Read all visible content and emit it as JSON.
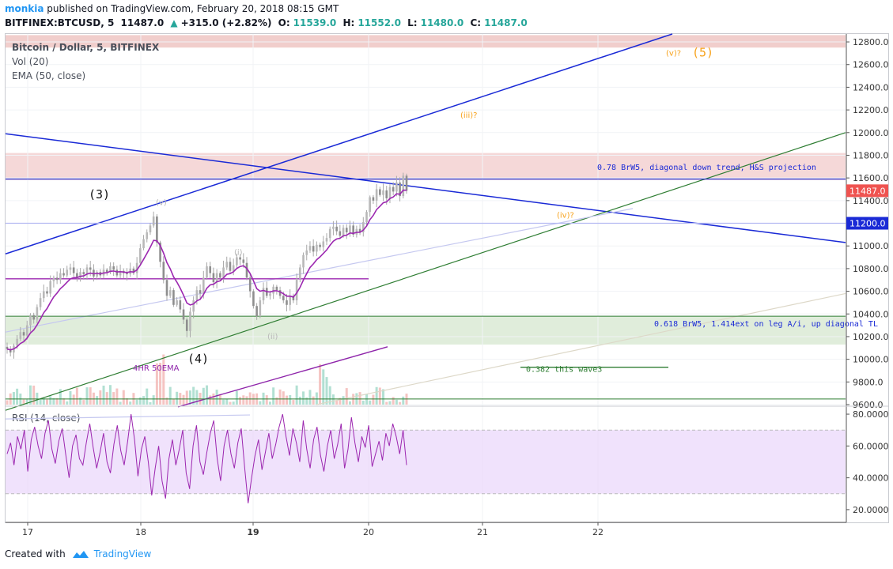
{
  "header": {
    "user": "monkia",
    "published": " published on TradingView.com, February 20, 2018 08:15 GMT",
    "symbol": "BITFINEX:BTCUSD, 5",
    "last": "11487.0",
    "change_icon": "up-triangle-icon",
    "change": "+315.0 (+2.82%)",
    "o_label": "O:",
    "o": "11539.0",
    "h_label": "H:",
    "h": "11552.0",
    "l_label": "L:",
    "l": "11480.0",
    "c_label": "C:",
    "c": "11487.0"
  },
  "legend": {
    "title": "Bitcoin / Dollar, 5, BITFINEX",
    "vol": "Vol (20)",
    "ema": "EMA (50, close)",
    "rsi": "RSI (14, close)"
  },
  "footer": {
    "created": "Created with",
    "brand": "TradingView"
  },
  "colors": {
    "accent": "#2196f3",
    "up": "#26a69a",
    "down": "#ef5350",
    "ema": "#9c27b0",
    "wave": "#f7a21b",
    "trend_blue": "#1a2ad6",
    "trend_green": "#2e7d32",
    "price_badge": "#ef5350",
    "rsi_band": "#e9d5fb"
  },
  "chart_data": {
    "type": "candlestick",
    "price_axis": {
      "ylim": [
        9600,
        12870
      ],
      "ticks": [
        "9600.0",
        "9800.0",
        "10000.0",
        "10200.0",
        "10400.0",
        "10600.0",
        "10800.0",
        "11000.0",
        "11200.0",
        "11400.0",
        "11600.0",
        "11800.0",
        "12000.0",
        "12200.0",
        "12400.0",
        "12600.0",
        "12800.0"
      ],
      "labels": {
        "last": "11487.0",
        "level": "11200.0"
      }
    },
    "time_axis": {
      "ticks": [
        "17",
        "18",
        "19",
        "20",
        "21",
        "22"
      ],
      "bold_tick": "19"
    },
    "rsi_axis": {
      "ylim": [
        12,
        84
      ],
      "ticks": [
        "20.0000",
        "40.0000",
        "60.0000",
        "80.0000"
      ],
      "band": [
        30,
        70
      ]
    },
    "zones": [
      {
        "name": "top-zone",
        "y1": 12750,
        "y2": 12860
      },
      {
        "name": "projection-zone",
        "y1": 11580,
        "y2": 11820
      },
      {
        "name": "support-zone",
        "y1": 10130,
        "y2": 10380
      }
    ],
    "annotations": {
      "projection": "0.78 BrW5, diagonal down trend, H&S projection",
      "support": "0.618 BrW5, 1.414ext on leg A/i, up diagonal TL",
      "wave382": "0.382 this wave3",
      "ema4hr": "4HR 50EMA",
      "w3": "(3)",
      "w4": "(4)",
      "w5": "(5)",
      "wv1": "(v)",
      "wv2": "(v)?",
      "wi": "(i)",
      "wii": "(ii)",
      "wiii": "(iii)?",
      "wiv": "(iv)?"
    },
    "close_series": [
      10090,
      10060,
      10120,
      10180,
      10240,
      10210,
      10300,
      10390,
      10350,
      10460,
      10540,
      10600,
      10580,
      10690,
      10720,
      10700,
      10760,
      10740,
      10790,
      10810,
      10760,
      10720,
      10770,
      10750,
      10810,
      10790,
      10730,
      10770,
      10740,
      10790,
      10770,
      10820,
      10790,
      10740,
      10780,
      10760,
      10750,
      10800,
      10760,
      10850,
      10980,
      11060,
      11120,
      11180,
      11260,
      11030,
      10860,
      10700,
      10560,
      10610,
      10480,
      10520,
      10440,
      10350,
      10250,
      10420,
      10520,
      10610,
      10580,
      10720,
      10820,
      10760,
      10680,
      10760,
      10720,
      10810,
      10860,
      10780,
      10830,
      10900,
      10880,
      10850,
      10720,
      10600,
      10470,
      10380,
      10520,
      10630,
      10560,
      10580,
      10640,
      10610,
      10560,
      10520,
      10480,
      10560,
      10520,
      10710,
      10810,
      10920,
      10960,
      11000,
      10950,
      11010,
      10990,
      11040,
      11070,
      11150,
      11170,
      11130,
      11090,
      11160,
      11120,
      11180,
      11100,
      11150,
      11120,
      11210,
      11300,
      11430,
      11400,
      11500,
      11450,
      11490,
      11420,
      11520,
      11480,
      11560,
      11440,
      11620,
      11487
    ],
    "rsi_series": [
      55,
      62,
      48,
      66,
      58,
      70,
      44,
      64,
      72,
      60,
      52,
      68,
      76,
      58,
      49,
      63,
      71,
      55,
      40,
      60,
      67,
      52,
      48,
      62,
      74,
      59,
      46,
      56,
      68,
      50,
      43,
      61,
      73,
      57,
      48,
      63,
      80,
      64,
      41,
      58,
      66,
      50,
      29,
      46,
      60,
      38,
      27,
      52,
      64,
      48,
      58,
      70,
      43,
      33,
      60,
      73,
      50,
      42,
      56,
      68,
      76,
      52,
      38,
      60,
      70,
      55,
      46,
      62,
      71,
      46,
      24,
      40,
      54,
      64,
      45,
      56,
      68,
      52,
      61,
      72,
      80,
      66,
      54,
      71,
      62,
      50,
      76,
      58,
      46,
      64,
      72,
      54,
      44,
      60,
      70,
      52,
      61,
      74,
      46,
      58,
      78,
      62,
      50,
      66,
      59,
      73,
      47,
      55,
      63,
      51,
      68,
      60,
      74,
      66,
      55,
      70,
      48
    ]
  }
}
